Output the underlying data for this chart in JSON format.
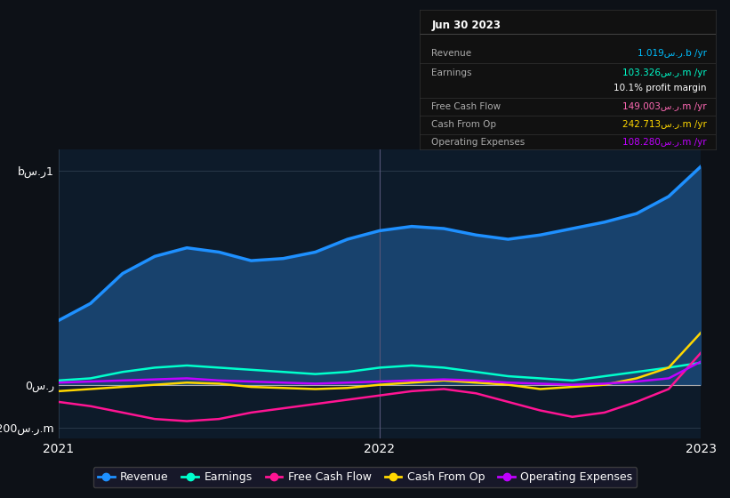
{
  "bg_color": "#0d1117",
  "chart_bg": "#0d1b2a",
  "title": "Jun 30 2023",
  "ylabel_top": "bس.ر1",
  "ylabel_mid": "0س.ر",
  "ylabel_bot": "-200س.ر.m",
  "x_ticks": [
    "2021",
    "2022",
    "2023"
  ],
  "series": {
    "Revenue": {
      "color": "#1e90ff",
      "fill_color": "#1a4a7a",
      "x": [
        0,
        0.15,
        0.3,
        0.45,
        0.6,
        0.75,
        0.9,
        1.05,
        1.2,
        1.35,
        1.5,
        1.65,
        1.8,
        1.95,
        2.1,
        2.25,
        2.4,
        2.55,
        2.7,
        2.85,
        3.0
      ],
      "y": [
        300,
        380,
        520,
        600,
        640,
        620,
        580,
        590,
        620,
        680,
        720,
        740,
        730,
        700,
        680,
        700,
        730,
        760,
        800,
        880,
        1020
      ]
    },
    "Earnings": {
      "color": "#00ffcc",
      "x": [
        0,
        0.15,
        0.3,
        0.45,
        0.6,
        0.75,
        0.9,
        1.05,
        1.2,
        1.35,
        1.5,
        1.65,
        1.8,
        1.95,
        2.1,
        2.25,
        2.4,
        2.55,
        2.7,
        2.85,
        3.0
      ],
      "y": [
        20,
        30,
        60,
        80,
        90,
        80,
        70,
        60,
        50,
        60,
        80,
        90,
        80,
        60,
        40,
        30,
        20,
        40,
        60,
        80,
        103
      ]
    },
    "Free Cash Flow": {
      "color": "#ff1493",
      "x": [
        0,
        0.15,
        0.3,
        0.45,
        0.6,
        0.75,
        0.9,
        1.05,
        1.2,
        1.35,
        1.5,
        1.65,
        1.8,
        1.95,
        2.1,
        2.25,
        2.4,
        2.55,
        2.7,
        2.85,
        3.0
      ],
      "y": [
        -80,
        -100,
        -130,
        -160,
        -170,
        -160,
        -130,
        -110,
        -90,
        -70,
        -50,
        -30,
        -20,
        -40,
        -80,
        -120,
        -150,
        -130,
        -80,
        -20,
        149
      ]
    },
    "Cash From Op": {
      "color": "#ffd700",
      "x": [
        0,
        0.15,
        0.3,
        0.45,
        0.6,
        0.75,
        0.9,
        1.05,
        1.2,
        1.35,
        1.5,
        1.65,
        1.8,
        1.95,
        2.1,
        2.25,
        2.4,
        2.55,
        2.7,
        2.85,
        3.0
      ],
      "y": [
        -30,
        -20,
        -10,
        0,
        10,
        5,
        -10,
        -15,
        -20,
        -15,
        0,
        10,
        20,
        10,
        0,
        -20,
        -10,
        0,
        30,
        80,
        243
      ]
    },
    "Operating Expenses": {
      "color": "#bf00ff",
      "x": [
        0,
        0.15,
        0.3,
        0.45,
        0.6,
        0.75,
        0.9,
        1.05,
        1.2,
        1.35,
        1.5,
        1.65,
        1.8,
        1.95,
        2.1,
        2.25,
        2.4,
        2.55,
        2.7,
        2.85,
        3.0
      ],
      "y": [
        10,
        15,
        20,
        25,
        30,
        20,
        15,
        10,
        5,
        10,
        15,
        20,
        25,
        20,
        10,
        5,
        0,
        5,
        15,
        30,
        108
      ]
    }
  },
  "legend": [
    {
      "label": "Revenue",
      "color": "#1e90ff"
    },
    {
      "label": "Earnings",
      "color": "#00ffcc"
    },
    {
      "label": "Free Cash Flow",
      "color": "#ff1493"
    },
    {
      "label": "Cash From Op",
      "color": "#ffd700"
    },
    {
      "label": "Operating Expenses",
      "color": "#bf00ff"
    }
  ],
  "table_rows": [
    {
      "label": "Revenue",
      "value": "1.019س.ر.b /yr",
      "color": "#00bfff",
      "divider": true
    },
    {
      "label": "Earnings",
      "value": "103.326س.ر.m /yr",
      "color": "#00ffcc",
      "divider": false
    },
    {
      "label": "",
      "value": "10.1% profit margin",
      "color": "#ffffff",
      "divider": true
    },
    {
      "label": "Free Cash Flow",
      "value": "149.003س.ر.m /yr",
      "color": "#ff69b4",
      "divider": true
    },
    {
      "label": "Cash From Op",
      "value": "242.713س.ر.m /yr",
      "color": "#ffd700",
      "divider": true
    },
    {
      "label": "Operating Expenses",
      "value": "108.280س.ر.m /yr",
      "color": "#bf00ff",
      "divider": false
    }
  ],
  "vline_x": 1.5,
  "ylim": [
    -250,
    1100
  ],
  "xlim": [
    0,
    3.0
  ]
}
